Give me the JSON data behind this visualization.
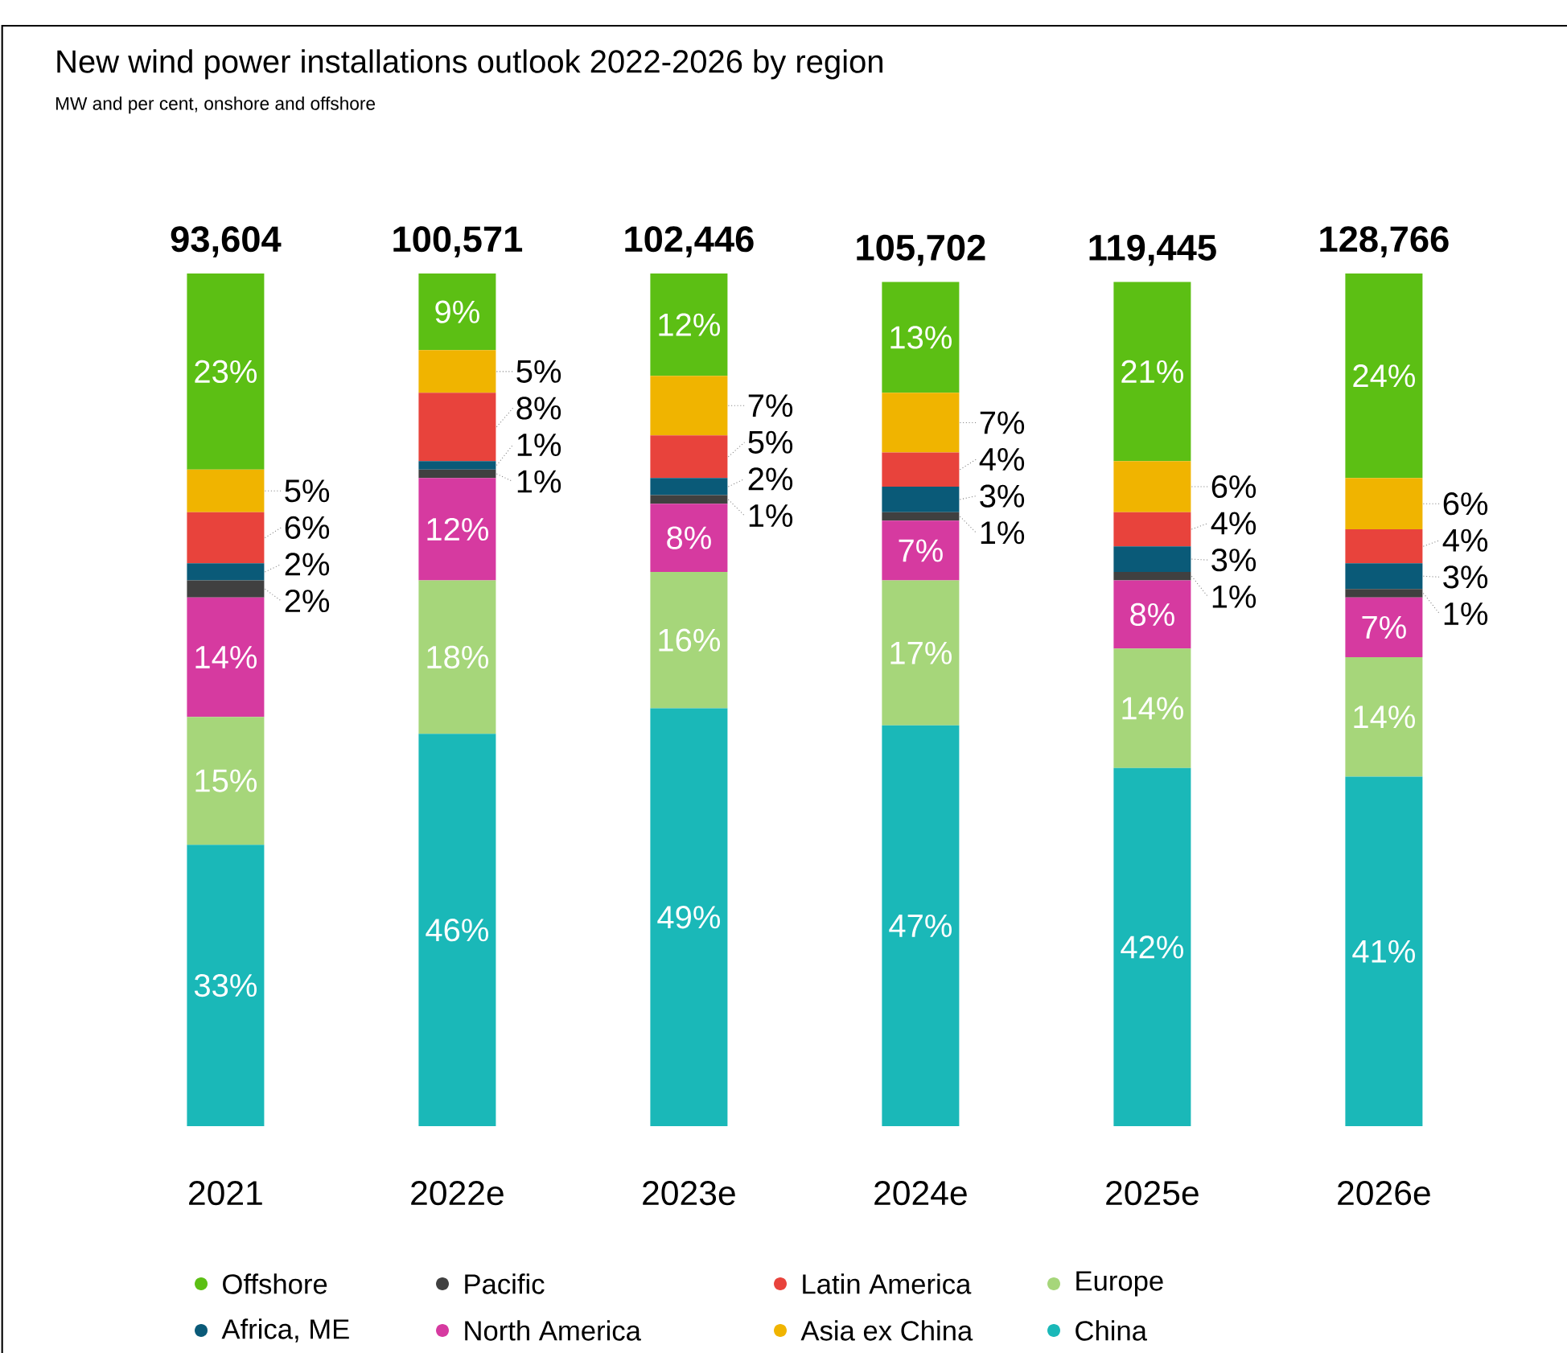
{
  "chart_data": {
    "type": "bar",
    "stacked": true,
    "title": "New wind power installations outlook 2022-2026 by region",
    "subtitle": "MW and per cent, onshore and offshore",
    "categories": [
      "2021",
      "2022e",
      "2023e",
      "2024e",
      "2025e",
      "2026e"
    ],
    "annotations": [
      {
        "text": "93,604",
        "x": "2021",
        "y": 100
      },
      {
        "text": "100,571",
        "x": "2022e",
        "y": 100
      },
      {
        "text": "102,446",
        "x": "2023e",
        "y": 100
      },
      {
        "text": "105,702",
        "x": "2024e",
        "y": 99
      },
      {
        "text": "119,445",
        "x": "2025e",
        "y": 99
      },
      {
        "text": "128,766",
        "x": "2026e",
        "y": 100
      }
    ],
    "legend": "bottom",
    "series": [
      {
        "name": "China",
        "color": "#1ab8b8",
        "values": [
          33,
          46,
          49,
          47,
          42,
          41
        ],
        "value_labels": [
          "33%",
          "46%",
          "49%",
          "47%",
          "42%",
          "41%"
        ]
      },
      {
        "name": "Europe",
        "color": "#a6d67a",
        "values": [
          15,
          18,
          16,
          17,
          14,
          14
        ],
        "value_labels": [
          "15%",
          "18%",
          "16%",
          "17%",
          "14%",
          "14%"
        ]
      },
      {
        "name": "North America",
        "color": "#d63aa0",
        "values": [
          14,
          12,
          8,
          7,
          8,
          7
        ],
        "value_labels": [
          "14%",
          "12%",
          "8%",
          "7%",
          "8%",
          "7%"
        ]
      },
      {
        "name": "Pacific",
        "color": "#404040",
        "values": [
          2,
          1,
          1,
          1,
          1,
          1
        ],
        "value_labels": [
          "2%",
          "1%",
          "1%",
          "1%",
          "1%",
          "1%"
        ]
      },
      {
        "name": "Africa, ME",
        "color": "#0a5a78",
        "values": [
          2,
          1,
          2,
          3,
          3,
          3
        ],
        "value_labels": [
          "2%",
          "1%",
          "2%",
          "3%",
          "3%",
          "3%"
        ]
      },
      {
        "name": "Latin America",
        "color": "#e8433c",
        "values": [
          6,
          8,
          5,
          4,
          4,
          4
        ],
        "value_labels": [
          "6%",
          "8%",
          "5%",
          "4%",
          "4%",
          "4%"
        ]
      },
      {
        "name": "Asia ex China",
        "color": "#f0b400",
        "values": [
          5,
          5,
          7,
          7,
          6,
          6
        ],
        "value_labels": [
          "5%",
          "5%",
          "7%",
          "7%",
          "6%",
          "6%"
        ]
      },
      {
        "name": "Offshore",
        "color": "#5cbf14",
        "values": [
          23,
          9,
          12,
          13,
          21,
          24
        ],
        "value_labels": [
          "23%",
          "9%",
          "12%",
          "13%",
          "21%",
          "24%"
        ]
      }
    ]
  }
}
